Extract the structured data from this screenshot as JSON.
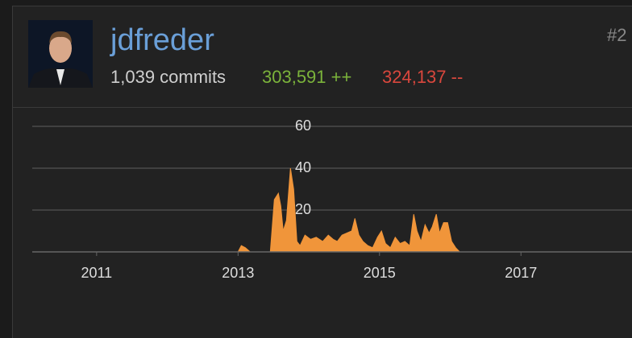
{
  "user": {
    "name": "jdfreder",
    "rank": "#2",
    "commits": "1,039 commits",
    "additions": "303,591 ++",
    "deletions": "324,137 --"
  },
  "chart_data": {
    "type": "area",
    "color": "#f0953a",
    "x": [
      2013.0,
      2013.046,
      2013.103,
      2013.171,
      2013.456,
      2013.513,
      2013.57,
      2013.604,
      2013.638,
      2013.684,
      2013.741,
      2013.786,
      2013.832,
      2013.877,
      2013.946,
      2014.026,
      2014.105,
      2014.197,
      2014.276,
      2014.345,
      2014.402,
      2014.47,
      2014.538,
      2014.607,
      2014.652,
      2014.709,
      2014.766,
      2014.835,
      2014.903,
      2014.972,
      2015.028,
      2015.085,
      2015.154,
      2015.222,
      2015.291,
      2015.359,
      2015.427,
      2015.484,
      2015.53,
      2015.587,
      2015.644,
      2015.701,
      2015.746,
      2015.803,
      2015.849,
      2015.906,
      2015.963,
      2016.02,
      2016.077,
      2016.134
    ],
    "values": [
      0,
      3,
      2,
      0,
      0,
      25,
      28,
      22,
      10,
      15,
      40,
      30,
      5,
      3,
      8,
      6,
      7,
      5,
      8,
      6,
      5,
      8,
      9,
      10,
      16,
      8,
      5,
      3,
      2,
      7,
      10,
      4,
      2,
      7,
      4,
      5,
      3,
      18,
      10,
      5,
      13,
      9,
      12,
      18,
      9,
      14,
      14,
      5,
      2,
      0
    ],
    "xlim": [
      2010.09,
      2018.57
    ],
    "xticks": [
      2011,
      2013,
      2015,
      2017
    ],
    "ylim": [
      0,
      60
    ],
    "yticks": [
      20,
      40,
      60
    ],
    "grid": true
  }
}
